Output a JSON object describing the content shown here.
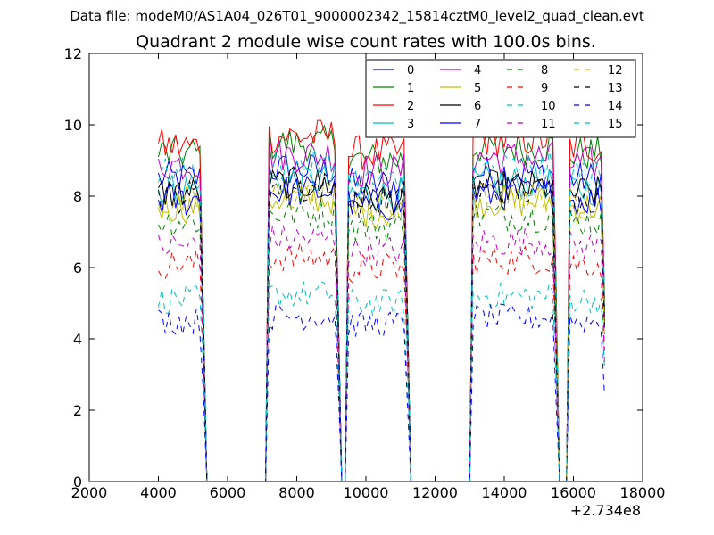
{
  "header": {
    "file_title": "Data file: modeM0/AS1A04_026T01_9000002342_15814cztM0_level2_quad_clean.evt"
  },
  "chart_data": {
    "type": "line",
    "title": "Quadrant 2 module wise count rates with 100.0s bins.",
    "xlabel": "",
    "ylabel": "",
    "xlim": [
      2000,
      18000
    ],
    "ylim": [
      0,
      12
    ],
    "x_offset_label": "+2.734e8",
    "xticks": [
      2000,
      4000,
      6000,
      8000,
      10000,
      12000,
      14000,
      16000,
      18000
    ],
    "yticks": [
      0,
      2,
      4,
      6,
      8,
      10,
      12
    ],
    "legend_position": "upper-right",
    "bin_size_s": 100,
    "segments": [
      {
        "start": 4000,
        "end": 5300
      },
      {
        "start": 7200,
        "end": 9200
      },
      {
        "start": 9500,
        "end": 11200
      },
      {
        "start": 13100,
        "end": 15500
      },
      {
        "start": 15900,
        "end": 16900
      }
    ],
    "gaps_zero_ranges": [
      [
        5400,
        7100
      ],
      [
        9300,
        9400
      ],
      [
        11300,
        13000
      ],
      [
        15600,
        15800
      ]
    ],
    "series": [
      {
        "name": "0",
        "color": "#0000ff",
        "dash": "solid",
        "level": 8.5
      },
      {
        "name": "1",
        "color": "#008000",
        "dash": "solid",
        "level": 9.2
      },
      {
        "name": "2",
        "color": "#ff0000",
        "dash": "solid",
        "level": 9.4
      },
      {
        "name": "3",
        "color": "#00bfbf",
        "dash": "solid",
        "level": 8.2
      },
      {
        "name": "4",
        "color": "#bf00bf",
        "dash": "solid",
        "level": 8.9
      },
      {
        "name": "5",
        "color": "#bfbf00",
        "dash": "solid",
        "level": 7.7
      },
      {
        "name": "6",
        "color": "#000000",
        "dash": "solid",
        "level": 8.1
      },
      {
        "name": "7",
        "color": "#0000ff",
        "dash": "solid",
        "level": 7.9
      },
      {
        "name": "8",
        "color": "#008000",
        "dash": "dashed",
        "level": 7.3
      },
      {
        "name": "9",
        "color": "#ff0000",
        "dash": "dashed",
        "level": 6.1
      },
      {
        "name": "10",
        "color": "#00bfbf",
        "dash": "dashed",
        "level": 5.1
      },
      {
        "name": "11",
        "color": "#bf00bf",
        "dash": "dashed",
        "level": 6.6
      },
      {
        "name": "12",
        "color": "#bfbf00",
        "dash": "dashed",
        "level": 7.8
      },
      {
        "name": "13",
        "color": "#000000",
        "dash": "dashed",
        "level": 8.0
      },
      {
        "name": "14",
        "color": "#0000ff",
        "dash": "dashed",
        "level": 4.5
      },
      {
        "name": "15",
        "color": "#00bfbf",
        "dash": "dashed",
        "level": 8.6
      }
    ]
  }
}
